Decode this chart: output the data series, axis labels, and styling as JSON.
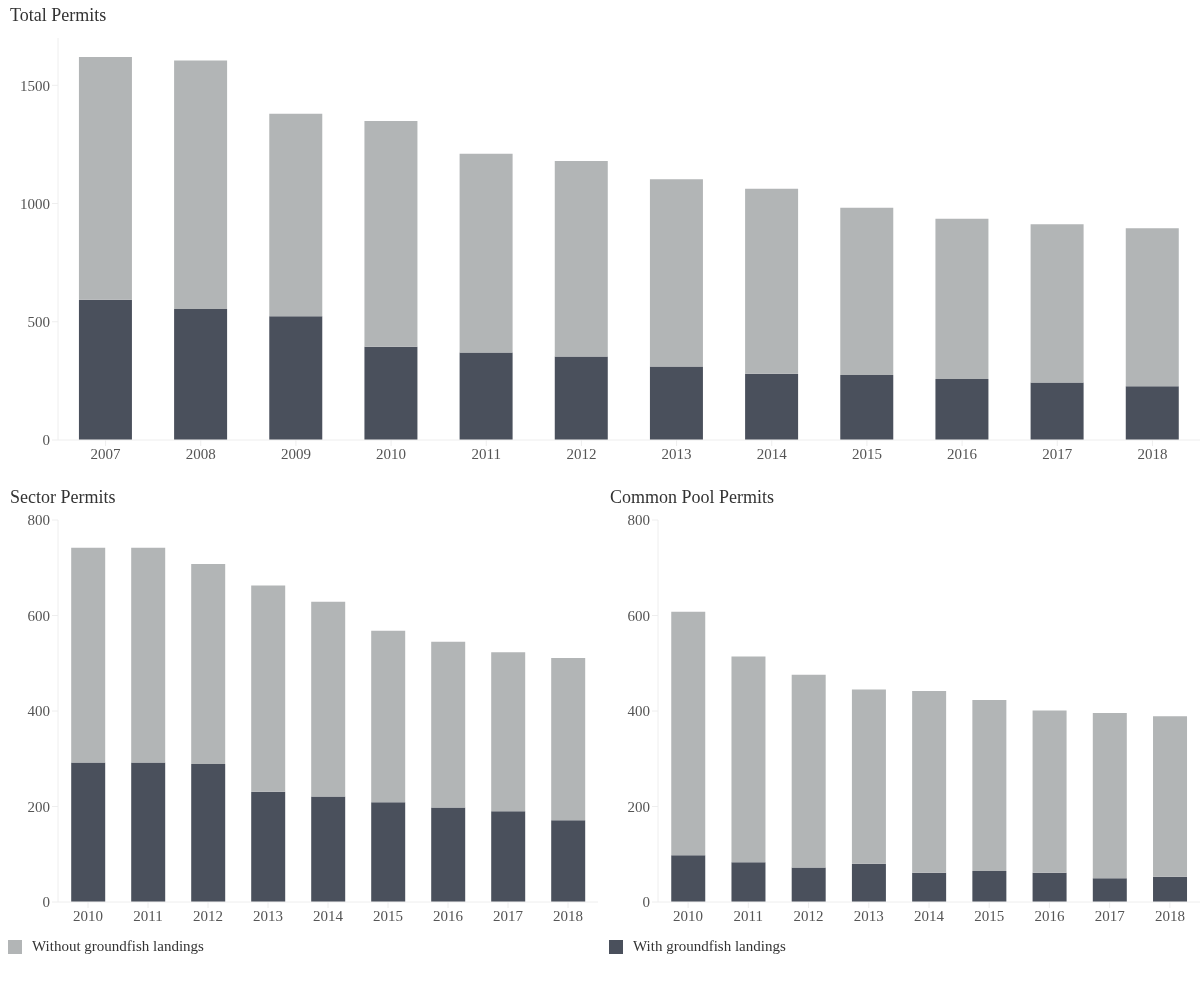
{
  "chart_data": [
    {
      "type": "bar",
      "title": "Total Permits",
      "stacked": true,
      "categories": [
        "2007",
        "2008",
        "2009",
        "2010",
        "2011",
        "2012",
        "2013",
        "2014",
        "2015",
        "2016",
        "2017",
        "2018"
      ],
      "series": [
        {
          "color": "#4a505c",
          "values": [
            593,
            554,
            523,
            394,
            370,
            353,
            311,
            280,
            275,
            258,
            243,
            227
          ]
        },
        {
          "color": "#b2b5b6",
          "values": [
            1027,
            1051,
            857,
            955,
            841,
            827,
            792,
            783,
            707,
            678,
            669,
            668
          ]
        }
      ],
      "ylim": [
        0,
        1700
      ],
      "yticks": [
        0,
        500,
        1000,
        1500
      ],
      "grid": false,
      "legend": false
    },
    {
      "type": "bar",
      "title": "Sector Permits",
      "stacked": true,
      "categories": [
        "2010",
        "2011",
        "2012",
        "2013",
        "2014",
        "2015",
        "2016",
        "2017",
        "2018"
      ],
      "series": [
        {
          "name": "With groundfish landings",
          "color": "#4a505c",
          "values": [
            292,
            292,
            289,
            231,
            221,
            209,
            198,
            190,
            171
          ]
        },
        {
          "name": "Without groundfish landings",
          "color": "#b2b5b6",
          "values": [
            450,
            450,
            419,
            432,
            408,
            359,
            347,
            333,
            340
          ]
        }
      ],
      "ylim": [
        0,
        800
      ],
      "yticks": [
        0,
        200,
        400,
        600,
        800
      ],
      "grid": false,
      "legend": "bottom"
    },
    {
      "type": "bar",
      "title": "Common Pool Permits",
      "stacked": true,
      "categories": [
        "2010",
        "2011",
        "2012",
        "2013",
        "2014",
        "2015",
        "2016",
        "2017",
        "2018"
      ],
      "series": [
        {
          "color": "#4a505c",
          "values": [
            98,
            83,
            72,
            80,
            61,
            65,
            61,
            50,
            53
          ]
        },
        {
          "color": "#b2b5b6",
          "values": [
            510,
            431,
            404,
            365,
            381,
            358,
            340,
            346,
            336
          ]
        }
      ],
      "ylim": [
        0,
        800
      ],
      "yticks": [
        0,
        200,
        400,
        600,
        800
      ],
      "grid": false,
      "legend": false
    }
  ]
}
